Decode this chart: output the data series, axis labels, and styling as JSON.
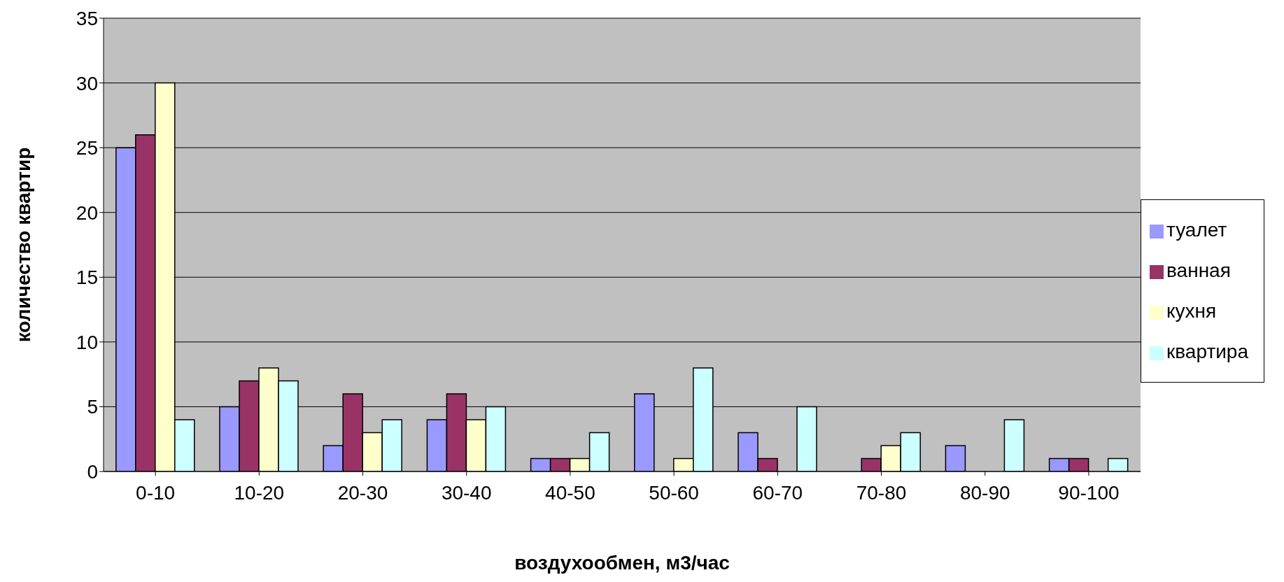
{
  "chart_data": {
    "type": "bar",
    "xlabel": "воздухообмен, м3/час",
    "ylabel": "количество квартир",
    "categories": [
      "0-10",
      "10-20",
      "20-30",
      "30-40",
      "40-50",
      "50-60",
      "60-70",
      "70-80",
      "80-90",
      "90-100"
    ],
    "series": [
      {
        "name": "туалет",
        "color": "#9999ff",
        "values": [
          25,
          5,
          2,
          4,
          1,
          6,
          3,
          0,
          2,
          1
        ]
      },
      {
        "name": "ванная",
        "color": "#993366",
        "values": [
          26,
          7,
          6,
          6,
          1,
          0,
          1,
          1,
          0,
          1
        ]
      },
      {
        "name": "кухня",
        "color": "#ffffcc",
        "values": [
          30,
          8,
          3,
          4,
          1,
          1,
          0,
          2,
          0,
          0
        ]
      },
      {
        "name": "квартира",
        "color": "#ccffff",
        "values": [
          4,
          7,
          4,
          5,
          3,
          8,
          5,
          3,
          4,
          1
        ]
      }
    ],
    "ylim": [
      0,
      35
    ],
    "yticks": [
      0,
      5,
      10,
      15,
      20,
      25,
      30,
      35
    ],
    "grid": "y",
    "legend": "right"
  }
}
